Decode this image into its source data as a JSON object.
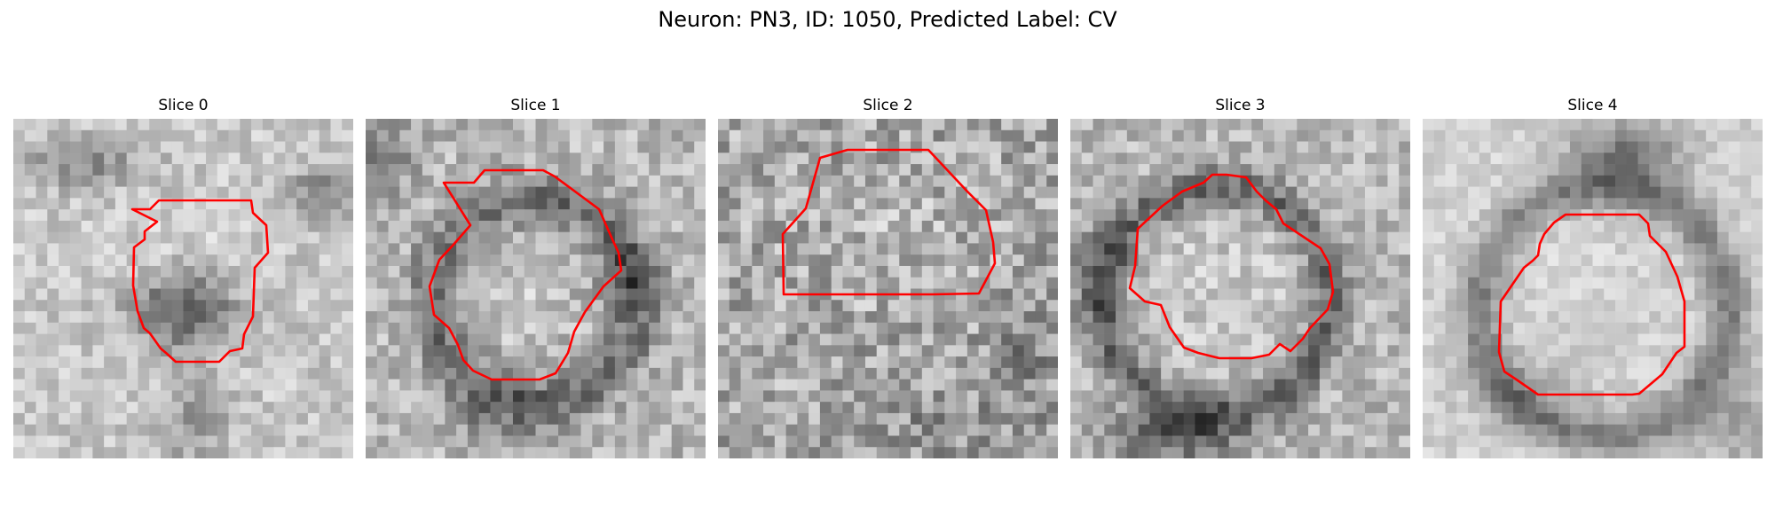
{
  "figure": {
    "title": "Neuron: PN3, ID: 1050, Predicted Label: CV"
  },
  "panels": [
    {
      "title": "Slice 0",
      "contour_color": "#ff0000"
    },
    {
      "title": "Slice 1",
      "contour_color": "#ff0000"
    },
    {
      "title": "Slice 2",
      "contour_color": "#ff0000"
    },
    {
      "title": "Slice 3",
      "contour_color": "#ff0000"
    },
    {
      "title": "Slice 4",
      "contour_color": "#ff0000"
    }
  ]
}
